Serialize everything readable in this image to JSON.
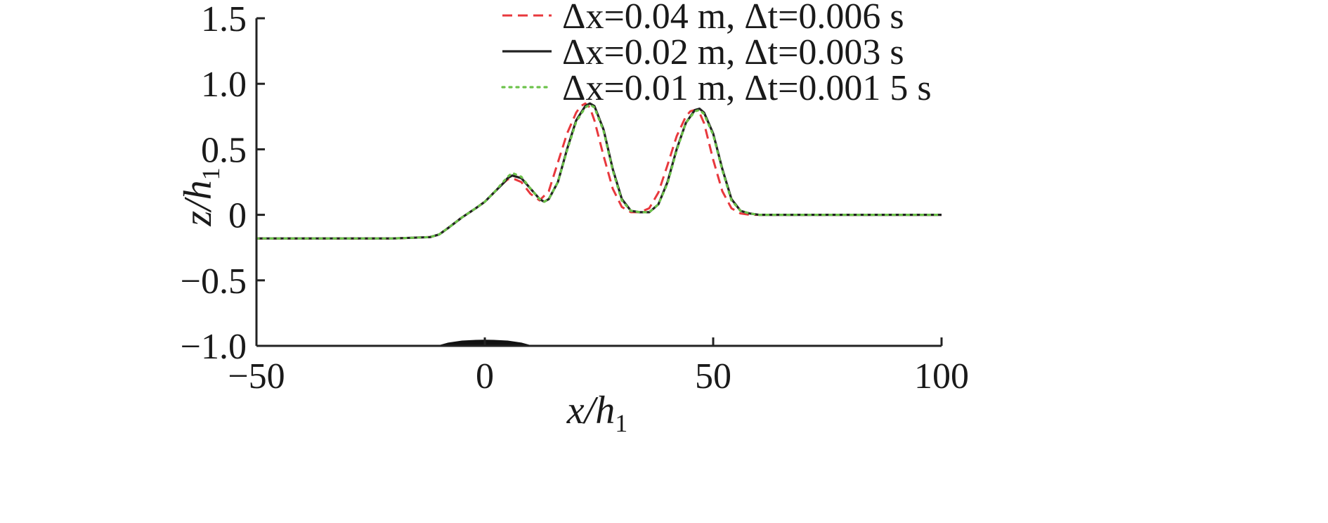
{
  "chart_data": {
    "type": "line",
    "xlabel": {
      "base": "x/h",
      "sub": "1"
    },
    "ylabel": {
      "base": "z/h",
      "sub": "1"
    },
    "xlim": [
      -50,
      100
    ],
    "ylim": [
      -1.0,
      1.5
    ],
    "xticks": [
      {
        "value": -50,
        "label": "−50"
      },
      {
        "value": 0,
        "label": "0"
      },
      {
        "value": 50,
        "label": "50"
      },
      {
        "value": 100,
        "label": "100"
      }
    ],
    "yticks": [
      {
        "value": 1.5,
        "label": "1.5"
      },
      {
        "value": 1.0,
        "label": "1.0"
      },
      {
        "value": 0.5,
        "label": "0.5"
      },
      {
        "value": 0,
        "label": "0"
      },
      {
        "value": -0.5,
        "label": "−0.5"
      },
      {
        "value": -1.0,
        "label": "−1.0"
      }
    ],
    "grid": false,
    "legend_position": "top-right",
    "series": [
      {
        "name": "Δx=0.04 m, Δt=0.006 s",
        "color": "#e8383d",
        "dash": "dashed",
        "x": [
          -50,
          -40,
          -30,
          -20,
          -12,
          -10,
          -8,
          -5,
          -2,
          0,
          2,
          4,
          5,
          6,
          8,
          10,
          12,
          14,
          16,
          18,
          20,
          21,
          22,
          23,
          24,
          26,
          28,
          30,
          32,
          34,
          36,
          38,
          40,
          42,
          44,
          45,
          46,
          47,
          48,
          50,
          52,
          54,
          56,
          58,
          60,
          70,
          80,
          90,
          100
        ],
        "y": [
          -0.18,
          -0.18,
          -0.18,
          -0.18,
          -0.17,
          -0.15,
          -0.1,
          -0.02,
          0.05,
          0.1,
          0.17,
          0.24,
          0.27,
          0.28,
          0.25,
          0.16,
          0.11,
          0.18,
          0.4,
          0.62,
          0.78,
          0.83,
          0.85,
          0.82,
          0.72,
          0.45,
          0.2,
          0.06,
          0.02,
          0.02,
          0.05,
          0.17,
          0.38,
          0.6,
          0.75,
          0.79,
          0.8,
          0.78,
          0.7,
          0.42,
          0.18,
          0.05,
          0.01,
          0.0,
          0.0,
          0.0,
          0.0,
          0.0,
          0.0
        ]
      },
      {
        "name": "Δx=0.02 m, Δt=0.003 s",
        "color": "#222222",
        "dash": "solid",
        "x": [
          -50,
          -40,
          -30,
          -20,
          -12,
          -10,
          -8,
          -5,
          -2,
          0,
          2,
          4,
          5,
          6,
          8,
          10,
          12,
          13,
          14,
          16,
          18,
          20,
          22,
          23,
          24,
          26,
          28,
          30,
          32,
          34,
          36,
          38,
          40,
          42,
          44,
          46,
          47,
          48,
          50,
          52,
          54,
          56,
          58,
          60,
          70,
          80,
          90,
          100
        ],
        "y": [
          -0.18,
          -0.18,
          -0.18,
          -0.18,
          -0.17,
          -0.15,
          -0.1,
          -0.02,
          0.05,
          0.1,
          0.17,
          0.24,
          0.28,
          0.3,
          0.28,
          0.2,
          0.12,
          0.1,
          0.12,
          0.25,
          0.5,
          0.72,
          0.83,
          0.85,
          0.83,
          0.65,
          0.35,
          0.12,
          0.03,
          0.02,
          0.02,
          0.08,
          0.25,
          0.5,
          0.7,
          0.8,
          0.81,
          0.78,
          0.62,
          0.35,
          0.12,
          0.03,
          0.01,
          0.0,
          0.0,
          0.0,
          0.0,
          0.0
        ]
      },
      {
        "name": "Δx=0.01 m, Δt=0.001 5 s",
        "color": "#6cc24a",
        "dash": "dotted",
        "x": [
          -50,
          -40,
          -30,
          -20,
          -12,
          -10,
          -8,
          -5,
          -2,
          0,
          2,
          4,
          5,
          6,
          8,
          10,
          12,
          13,
          14,
          16,
          18,
          20,
          22,
          23,
          24,
          26,
          28,
          30,
          32,
          34,
          36,
          38,
          40,
          42,
          44,
          46,
          47,
          48,
          50,
          52,
          54,
          56,
          58,
          60,
          70,
          80,
          90,
          100
        ],
        "y": [
          -0.18,
          -0.18,
          -0.18,
          -0.18,
          -0.17,
          -0.15,
          -0.1,
          -0.02,
          0.05,
          0.1,
          0.17,
          0.25,
          0.29,
          0.32,
          0.29,
          0.2,
          0.12,
          0.1,
          0.12,
          0.25,
          0.49,
          0.71,
          0.82,
          0.84,
          0.82,
          0.64,
          0.34,
          0.11,
          0.03,
          0.02,
          0.02,
          0.08,
          0.24,
          0.49,
          0.7,
          0.79,
          0.8,
          0.77,
          0.61,
          0.34,
          0.11,
          0.03,
          0.01,
          0.0,
          0.0,
          0.0,
          0.0,
          0.0
        ]
      }
    ],
    "bathymetry_bump": {
      "color": "#111111",
      "x": [
        -10,
        -8,
        -5,
        -2,
        0,
        2,
        5,
        8,
        10
      ],
      "y": [
        -1.0,
        -0.98,
        -0.965,
        -0.96,
        -0.958,
        -0.96,
        -0.965,
        -0.98,
        -1.0
      ]
    }
  }
}
